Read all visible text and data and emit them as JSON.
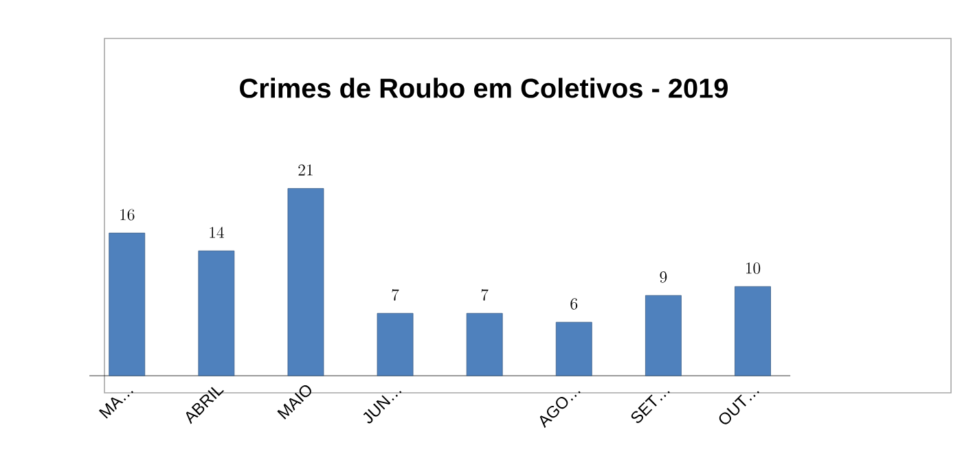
{
  "chart_data": {
    "type": "bar",
    "title": "Crimes de Roubo em Coletivos - 2019",
    "categories": [
      "MA…",
      "ABRIL",
      "MAIO",
      "JUN…",
      null,
      "AGO…",
      "SET…",
      "OUT…"
    ],
    "values": [
      16,
      14,
      21,
      7,
      7,
      6,
      9,
      10
    ],
    "color": "#4f81bd",
    "data_labels": true
  }
}
